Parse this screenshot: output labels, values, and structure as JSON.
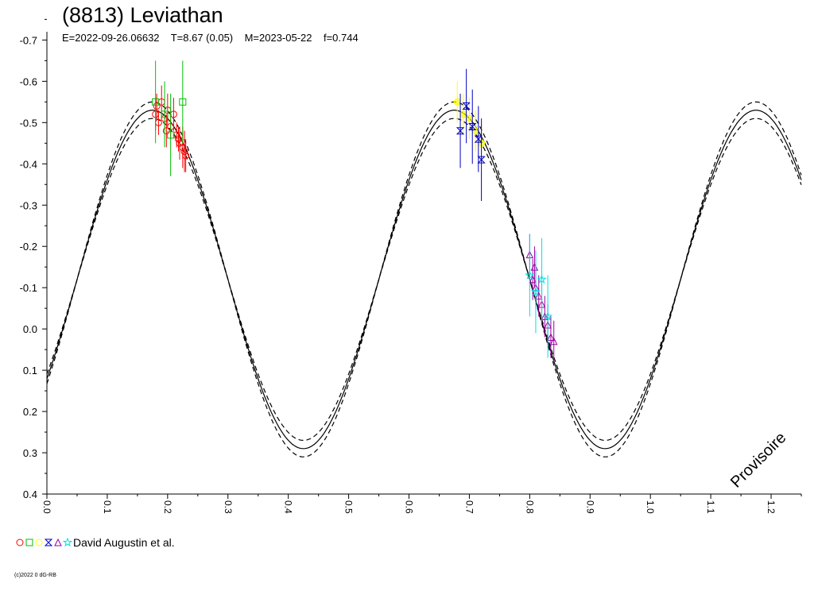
{
  "title": "(8813) Leviathan",
  "subtitle": "E=2022-09-26.06632    T=8.67 (0.05)    M=2023-05-22    f=0.744",
  "legend": {
    "label": "David Augustin et al."
  },
  "copyright": "(c)2022 0 dG-RB",
  "watermark": "Provisoire",
  "chart_data": {
    "type": "scatter",
    "x_ticks": [
      "0.0",
      "0.1",
      "0.2",
      "0.3",
      "0.4",
      "0.5",
      "0.6",
      "0.7",
      "0.8",
      "0.9",
      "1.0",
      "1.1",
      "1.2"
    ],
    "y_ticks": [
      "-0.7",
      "-0.6",
      "-0.5",
      "-0.4",
      "-0.3",
      "-0.2",
      "-0.1",
      "0.0",
      "0.1",
      "0.2",
      "0.3",
      "0.4"
    ],
    "xlim": [
      0.0,
      1.25
    ],
    "ylim": [
      -0.72,
      0.4
    ],
    "y_inverted": true,
    "model_curve": {
      "center": -0.12,
      "amplitude": 0.41,
      "peak_phase": 0.175,
      "envelope": 0.02,
      "cycles_per_phase": 2
    },
    "series": [
      {
        "symbol": "circle",
        "color": "#ff0000",
        "points": [
          [
            0.18,
            -0.52,
            0.04
          ],
          [
            0.185,
            -0.5,
            0.03
          ],
          [
            0.19,
            -0.55,
            0.04
          ],
          [
            0.195,
            -0.51,
            0.03
          ],
          [
            0.2,
            -0.53,
            0.04
          ],
          [
            0.205,
            -0.49,
            0.03
          ],
          [
            0.21,
            -0.52,
            0.04
          ],
          [
            0.215,
            -0.47,
            0.03
          ],
          [
            0.22,
            -0.45,
            0.04
          ],
          [
            0.225,
            -0.44,
            0.05
          ],
          [
            0.23,
            -0.42,
            0.04
          ],
          [
            0.182,
            -0.54,
            0.03
          ],
          [
            0.198,
            -0.48,
            0.04
          ],
          [
            0.218,
            -0.46,
            0.03
          ],
          [
            0.228,
            -0.43,
            0.05
          ]
        ]
      },
      {
        "symbol": "square",
        "color": "#00c000",
        "points": [
          [
            0.18,
            -0.55,
            0.1
          ],
          [
            0.195,
            -0.52,
            0.08
          ],
          [
            0.205,
            -0.47,
            0.1
          ],
          [
            0.225,
            -0.55,
            0.1
          ]
        ]
      },
      {
        "symbol": "circle-open",
        "color": "#ffff00",
        "points": [
          [
            0.68,
            -0.55,
            0.05
          ],
          [
            0.69,
            -0.52,
            0.05
          ],
          [
            0.7,
            -0.51,
            0.05
          ],
          [
            0.71,
            -0.48,
            0.05
          ],
          [
            0.72,
            -0.45,
            0.05
          ]
        ]
      },
      {
        "symbol": "bowtie",
        "color": "#0000c0",
        "points": [
          [
            0.685,
            -0.48,
            0.09
          ],
          [
            0.695,
            -0.54,
            0.09
          ],
          [
            0.705,
            -0.49,
            0.09
          ],
          [
            0.715,
            -0.46,
            0.08
          ],
          [
            0.72,
            -0.41,
            0.1
          ]
        ]
      },
      {
        "symbol": "triangle",
        "color": "#a000a0",
        "points": [
          [
            0.8,
            -0.18,
            0.05
          ],
          [
            0.805,
            -0.12,
            0.05
          ],
          [
            0.81,
            -0.1,
            0.05
          ],
          [
            0.815,
            -0.08,
            0.05
          ],
          [
            0.82,
            -0.06,
            0.05
          ],
          [
            0.825,
            -0.03,
            0.05
          ],
          [
            0.83,
            -0.01,
            0.05
          ],
          [
            0.835,
            0.02,
            0.05
          ],
          [
            0.84,
            0.03,
            0.05
          ],
          [
            0.808,
            -0.15,
            0.05
          ]
        ]
      },
      {
        "symbol": "star",
        "color": "#00e0e0",
        "points": [
          [
            0.8,
            -0.13,
            0.1
          ],
          [
            0.81,
            -0.09,
            0.1
          ],
          [
            0.82,
            -0.12,
            0.1
          ],
          [
            0.83,
            -0.03,
            0.1
          ]
        ]
      }
    ]
  }
}
